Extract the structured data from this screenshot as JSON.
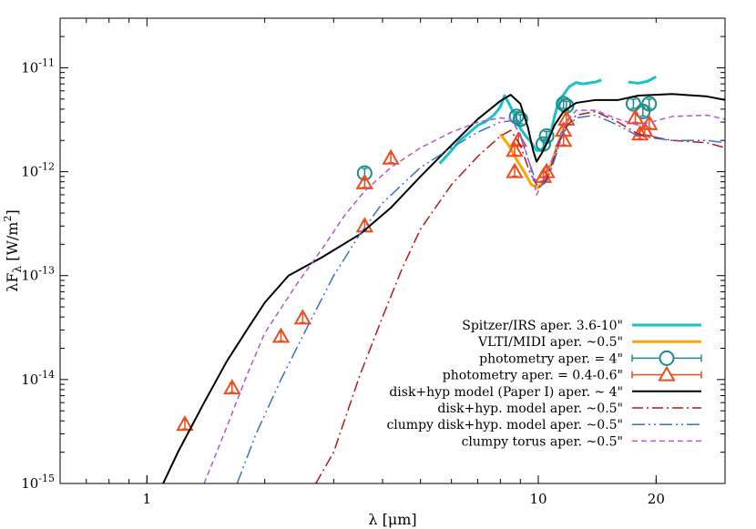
{
  "chart_data": {
    "type": "line",
    "title": "",
    "xlabel": "λ [μm]",
    "ylabel": "λF_λ [W/m^2]",
    "xlabel_parts": {
      "main": "λ [μm]"
    },
    "ylabel_parts": {
      "lam": "λF",
      "sub": "λ",
      "unit": " [W/m",
      "sup": "2",
      "close": "]"
    },
    "xscale": "log",
    "yscale": "log",
    "xlim": [
      0.6,
      30
    ],
    "ylim": [
      1e-15,
      3e-11
    ],
    "x_ticks": [
      {
        "value": 1,
        "label": "1"
      },
      {
        "value": 10,
        "label": "10"
      },
      {
        "value": 20,
        "label": "20"
      }
    ],
    "y_ticks": [
      {
        "value": 1e-15,
        "base": "10",
        "exp": "-15"
      },
      {
        "value": 1e-14,
        "base": "10",
        "exp": "-14"
      },
      {
        "value": 1e-13,
        "base": "10",
        "exp": "-13"
      },
      {
        "value": 1e-12,
        "base": "10",
        "exp": "-12"
      },
      {
        "value": 1e-11,
        "base": "10",
        "exp": "-11"
      }
    ],
    "grid": false,
    "legend_position": "bottom-right",
    "series": [
      {
        "name": "Spitzer/IRS aper. 3.6-10\"",
        "kind": "line",
        "color": "#17c3c6",
        "width": 3,
        "dash": "",
        "points": [
          [
            5.6,
            1.2e-12
          ],
          [
            6.0,
            1.6e-12
          ],
          [
            6.3,
            2e-12
          ],
          [
            6.6,
            2.3e-12
          ],
          [
            7.0,
            2.8e-12
          ],
          [
            7.3,
            3e-12
          ],
          [
            7.7,
            3.5e-12
          ],
          [
            8.0,
            4.2e-12
          ],
          [
            8.2,
            5.4e-12
          ],
          [
            8.4,
            4.6e-12
          ],
          [
            8.7,
            3.5e-12
          ],
          [
            9.0,
            2.6e-12
          ],
          [
            9.3,
            2.2e-12
          ],
          [
            9.6,
            1.9e-12
          ],
          [
            9.9,
            1.6e-12
          ],
          [
            10.2,
            1.6e-12
          ],
          [
            10.5,
            1.9e-12
          ],
          [
            10.8,
            2.5e-12
          ],
          [
            11.0,
            3.4e-12
          ],
          [
            11.3,
            4.9e-12
          ],
          [
            11.6,
            5.5e-12
          ],
          [
            12.0,
            6.6e-12
          ],
          [
            12.5,
            7.2e-12
          ],
          [
            13.0,
            7e-12
          ],
          [
            14.0,
            7.3e-12
          ],
          [
            14.5,
            7.6e-12
          ]
        ]
      },
      {
        "name": "Spitzer/IRS aper. 3.6-10\" (LL)",
        "kind": "line",
        "color": "#17c3c6",
        "width": 3,
        "dash": "",
        "legend": false,
        "points": [
          [
            17.0,
            7.3e-12
          ],
          [
            18.0,
            7.1e-12
          ],
          [
            19.0,
            7.4e-12
          ],
          [
            20.0,
            8.2e-12
          ]
        ]
      },
      {
        "name": "VLTI/MIDI aper. ~0.5\"",
        "kind": "line",
        "color": "#ffa500",
        "width": 3,
        "dash": "",
        "points": [
          [
            8.0,
            2.3e-12
          ],
          [
            8.4,
            1.8e-12
          ],
          [
            8.8,
            1.3e-12
          ],
          [
            9.2,
            1e-12
          ],
          [
            9.6,
            7.5e-13
          ],
          [
            10.0,
            7e-13
          ],
          [
            10.4,
            8.5e-13
          ],
          [
            10.8,
            1.2e-12
          ],
          [
            11.2,
            1.8e-12
          ],
          [
            11.6,
            2.6e-12
          ],
          [
            12.0,
            3.3e-12
          ]
        ]
      },
      {
        "name": "photometry aper. = 4\"",
        "kind": "marker",
        "marker": "circle",
        "color": "#1a8c8c",
        "points": [
          [
            3.6,
            9.7e-13
          ],
          [
            8.8,
            3.4e-12
          ],
          [
            9.0,
            3.2e-12
          ],
          [
            10.3,
            1.85e-12
          ],
          [
            10.5,
            2.2e-12
          ],
          [
            11.6,
            4.5e-12
          ],
          [
            11.8,
            4.3e-12
          ],
          [
            17.5,
            4.5e-12
          ],
          [
            18.5,
            3.8e-12
          ],
          [
            19.2,
            4.5e-12
          ]
        ]
      },
      {
        "name": "photometry aper. = 0.4-0.6\"",
        "kind": "marker",
        "marker": "triangle",
        "color": "#f04b1c",
        "points": [
          [
            1.25,
            3.7e-15
          ],
          [
            1.65,
            8.3e-15
          ],
          [
            2.2,
            2.6e-14
          ],
          [
            2.5,
            3.9e-14
          ],
          [
            3.6,
            3e-13
          ],
          [
            3.6,
            7.8e-13
          ],
          [
            4.2,
            1.35e-12
          ],
          [
            8.7,
            1.6e-12
          ],
          [
            8.7,
            1e-12
          ],
          [
            8.9,
            2e-12
          ],
          [
            10.5,
            1e-12
          ],
          [
            10.3,
            9e-13
          ],
          [
            11.6,
            2e-12
          ],
          [
            11.6,
            2.5e-12
          ],
          [
            11.8,
            3.2e-12
          ],
          [
            17.7,
            3.3e-12
          ],
          [
            18.2,
            2.3e-12
          ],
          [
            18.7,
            2.5e-12
          ],
          [
            19.2,
            2.9e-12
          ]
        ]
      },
      {
        "name": "disk+hyp model (Paper I) aper. ~ 4\"",
        "kind": "line",
        "color": "#000000",
        "width": 2,
        "dash": "",
        "points": [
          [
            1.1,
            1e-15
          ],
          [
            1.2,
            2e-15
          ],
          [
            1.4,
            6e-15
          ],
          [
            1.6,
            1.5e-14
          ],
          [
            1.8,
            3e-14
          ],
          [
            2.0,
            5.5e-14
          ],
          [
            2.3,
            1e-13
          ],
          [
            2.8,
            1.5e-13
          ],
          [
            3.5,
            2.5e-13
          ],
          [
            4.2,
            4.5e-13
          ],
          [
            5.0,
            9e-13
          ],
          [
            6.0,
            1.8e-12
          ],
          [
            7.0,
            3.2e-12
          ],
          [
            8.0,
            4.8e-12
          ],
          [
            8.5,
            5.5e-12
          ],
          [
            9.0,
            4.5e-12
          ],
          [
            9.4,
            2.7e-12
          ],
          [
            9.7,
            1.6e-12
          ],
          [
            9.9,
            1.25e-12
          ],
          [
            10.2,
            1.5e-12
          ],
          [
            10.6,
            2e-12
          ],
          [
            11.0,
            2.8e-12
          ],
          [
            11.6,
            3.8e-12
          ],
          [
            12.5,
            4.6e-12
          ],
          [
            14.0,
            4.9e-12
          ],
          [
            16.0,
            4.9e-12
          ],
          [
            18.0,
            5.4e-12
          ],
          [
            22.0,
            5.6e-12
          ],
          [
            27.0,
            5.3e-12
          ],
          [
            30.0,
            4.9e-12
          ]
        ]
      },
      {
        "name": "disk+hyp. model aper. ~0.5\"",
        "kind": "line",
        "color": "#b5181c",
        "width": 1.5,
        "dash": "12,4,2,4",
        "points": [
          [
            2.7,
            1e-15
          ],
          [
            3.0,
            2e-15
          ],
          [
            3.5,
            1.1e-14
          ],
          [
            4.0,
            4e-14
          ],
          [
            4.5,
            1.2e-13
          ],
          [
            5.0,
            2.8e-13
          ],
          [
            6.0,
            7.5e-13
          ],
          [
            7.0,
            1.4e-12
          ],
          [
            8.0,
            2.2e-12
          ],
          [
            8.5,
            2.5e-12
          ],
          [
            9.0,
            1.8e-12
          ],
          [
            9.5,
            1e-12
          ],
          [
            10.0,
            7e-13
          ],
          [
            10.5,
            8.5e-13
          ],
          [
            11.0,
            1.4e-12
          ],
          [
            11.6,
            2.5e-12
          ],
          [
            12.5,
            3.5e-12
          ],
          [
            14.0,
            3.8e-12
          ],
          [
            16.0,
            3e-12
          ],
          [
            18.0,
            2.3e-12
          ],
          [
            22.0,
            2e-12
          ],
          [
            27.0,
            1.9e-12
          ],
          [
            30.0,
            1.7e-12
          ]
        ]
      },
      {
        "name": "clumpy disk+hyp. model aper. ~0.5\"",
        "kind": "line",
        "color": "#3b6fc9",
        "width": 1.5,
        "dash": "14,4,2,4,2,4",
        "points": [
          [
            1.7,
            1e-15
          ],
          [
            1.9,
            3e-15
          ],
          [
            2.2,
            1e-14
          ],
          [
            2.6,
            3.5e-14
          ],
          [
            3.0,
            1e-13
          ],
          [
            3.5,
            2.5e-13
          ],
          [
            4.0,
            5e-13
          ],
          [
            5.0,
            1.1e-12
          ],
          [
            6.0,
            1.7e-12
          ],
          [
            7.0,
            2.4e-12
          ],
          [
            8.0,
            3e-12
          ],
          [
            8.6,
            3.1e-12
          ],
          [
            9.0,
            2.2e-12
          ],
          [
            9.5,
            1.2e-12
          ],
          [
            10.0,
            7e-13
          ],
          [
            10.5,
            8e-13
          ],
          [
            11.0,
            1.3e-12
          ],
          [
            11.6,
            2.4e-12
          ],
          [
            12.5,
            3.3e-12
          ],
          [
            14.0,
            3.5e-12
          ],
          [
            16.0,
            2.8e-12
          ],
          [
            18.0,
            2.2e-12
          ],
          [
            22.0,
            2e-12
          ],
          [
            27.0,
            2e-12
          ],
          [
            30.0,
            1.9e-12
          ]
        ]
      },
      {
        "name": "clumpy torus aper. ~0.5\"",
        "kind": "line",
        "color": "#b057d0",
        "width": 1.5,
        "dash": "6,4",
        "points": [
          [
            1.4,
            1e-15
          ],
          [
            1.6,
            3.5e-15
          ],
          [
            1.8,
            1.1e-14
          ],
          [
            2.0,
            2.8e-14
          ],
          [
            2.4,
            8e-14
          ],
          [
            2.8,
            1.8e-13
          ],
          [
            3.2,
            3.8e-13
          ],
          [
            3.6,
            6.5e-13
          ],
          [
            4.2,
            1.1e-12
          ],
          [
            5.0,
            1.7e-12
          ],
          [
            6.0,
            2.4e-12
          ],
          [
            7.0,
            3e-12
          ],
          [
            8.0,
            3.3e-12
          ],
          [
            8.5,
            3.2e-12
          ],
          [
            9.0,
            2.3e-12
          ],
          [
            9.5,
            1.2e-12
          ],
          [
            9.9,
            6e-13
          ],
          [
            10.3,
            8e-13
          ],
          [
            11.0,
            1.5e-12
          ],
          [
            11.6,
            2.8e-12
          ],
          [
            12.5,
            3.9e-12
          ],
          [
            14.0,
            3.9e-12
          ],
          [
            16.0,
            3.2e-12
          ],
          [
            18.0,
            2.8e-12
          ],
          [
            22.0,
            3.4e-12
          ],
          [
            27.0,
            3.5e-12
          ],
          [
            30.0,
            3.2e-12
          ]
        ]
      }
    ]
  }
}
